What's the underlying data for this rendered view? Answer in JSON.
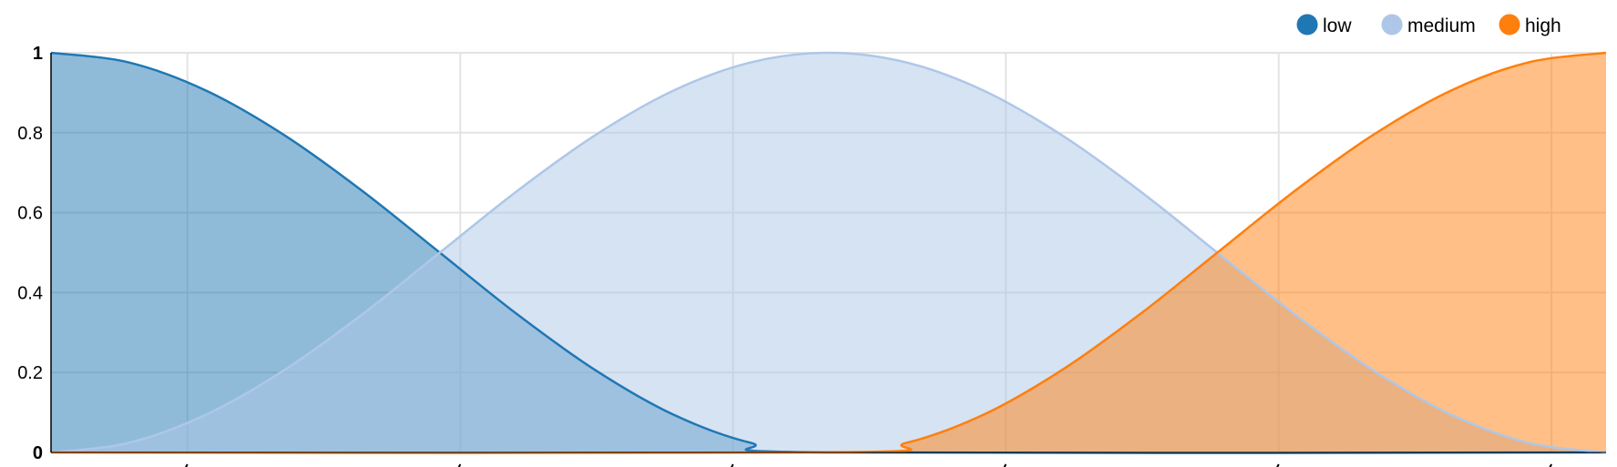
{
  "chart_data": {
    "type": "area",
    "title": "",
    "xlabel": "",
    "ylabel": "",
    "x_domain": [
      0,
      1
    ],
    "ylim": [
      0,
      1
    ],
    "y_ticks": [
      {
        "value": 0,
        "label": "0"
      },
      {
        "value": 0.2,
        "label": "0.2"
      },
      {
        "value": 0.4,
        "label": "0.4"
      },
      {
        "value": 0.6,
        "label": "0.6"
      },
      {
        "value": 0.8,
        "label": "0.8"
      },
      {
        "value": 1,
        "label": "1"
      }
    ],
    "x_gridlines": [
      0.0877,
      0.2632,
      0.4386,
      0.614,
      0.7895,
      0.9649
    ],
    "grid": true,
    "legend_position": "top-right",
    "series": [
      {
        "name": "low",
        "color": "#1f77b4",
        "x": [
          0,
          0.05,
          0.1,
          0.15,
          0.2,
          0.25,
          0.3,
          0.35,
          0.4,
          0.45,
          0.5,
          1
        ],
        "y": [
          1,
          0.976,
          0.905,
          0.794,
          0.655,
          0.5,
          0.345,
          0.206,
          0.095,
          0.024,
          0,
          0
        ]
      },
      {
        "name": "medium",
        "color": "#aec7e8",
        "x": [
          0,
          0.05,
          0.1,
          0.15,
          0.2,
          0.25,
          0.3,
          0.35,
          0.4,
          0.45,
          0.5,
          0.55,
          0.6,
          0.65,
          0.7,
          0.75,
          0.8,
          0.85,
          0.9,
          0.95,
          1
        ],
        "y": [
          0,
          0.024,
          0.095,
          0.206,
          0.345,
          0.5,
          0.655,
          0.794,
          0.905,
          0.976,
          1,
          0.976,
          0.905,
          0.794,
          0.655,
          0.5,
          0.345,
          0.206,
          0.095,
          0.024,
          0
        ]
      },
      {
        "name": "high",
        "color": "#ff7f0e",
        "x": [
          0,
          0.5,
          0.55,
          0.6,
          0.65,
          0.7,
          0.75,
          0.8,
          0.85,
          0.9,
          0.95,
          1
        ],
        "y": [
          0,
          0,
          0.024,
          0.095,
          0.206,
          0.345,
          0.5,
          0.655,
          0.794,
          0.905,
          0.976,
          1
        ]
      }
    ]
  }
}
